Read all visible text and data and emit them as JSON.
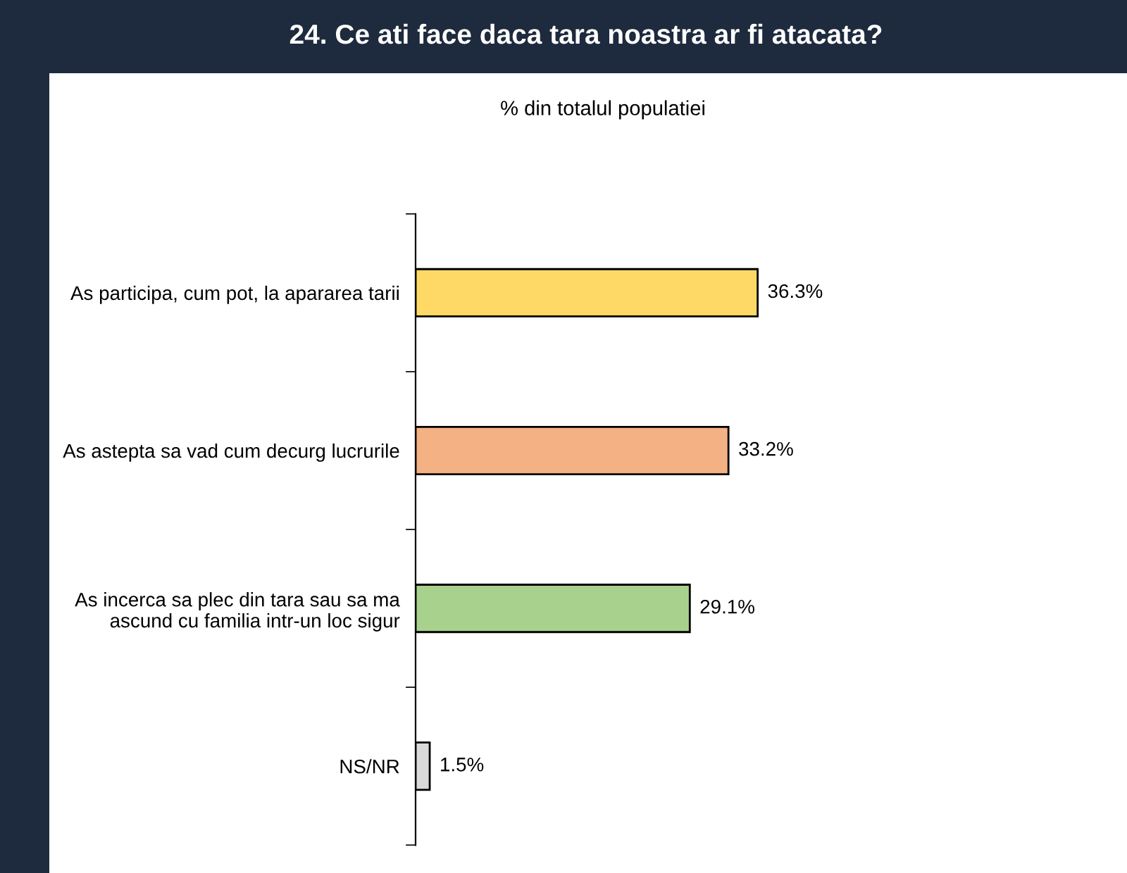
{
  "chart_data": {
    "type": "bar",
    "orientation": "horizontal",
    "title": "24. Ce ati face daca tara noastra ar fi atacata?",
    "subtitle": "% din totalul populatiei",
    "categories": [
      "As participa, cum pot, la apararea tarii",
      "As astepta sa vad cum decurg lucrurile",
      "As incerca sa plec din tara sau sa ma\nascund cu familia intr-un loc sigur",
      "NS/NR"
    ],
    "values": [
      36.3,
      33.2,
      29.1,
      1.5
    ],
    "colors": [
      "#ffd966",
      "#f4b183",
      "#a9d18e",
      "#d9d9d9"
    ],
    "value_labels": [
      "36.3%",
      "33.2%",
      "29.1%",
      "1.5%"
    ],
    "grid": false
  }
}
